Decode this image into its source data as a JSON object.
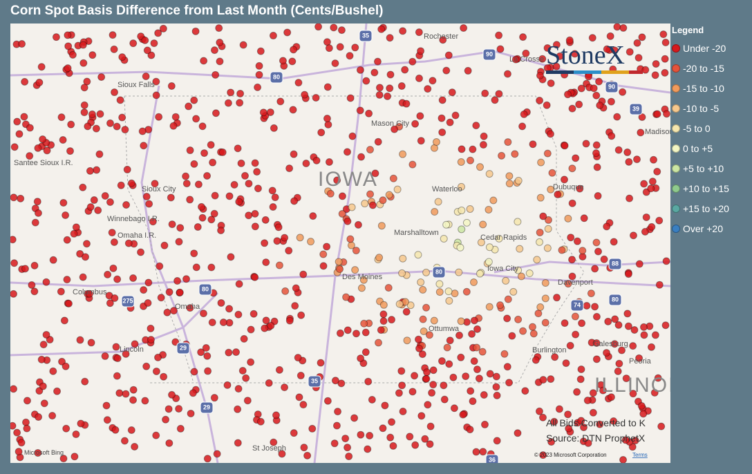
{
  "title": "Corn Spot Basis Difference from Last Month (Cents/Bushel)",
  "legend": {
    "title": "Legend",
    "items": [
      {
        "label": "Under -20",
        "color": "#d7191c"
      },
      {
        "label": "-20 to -15",
        "color": "#e5533a"
      },
      {
        "label": "-15 to -10",
        "color": "#f09a5c"
      },
      {
        "label": "-10 to -5",
        "color": "#f6c88d"
      },
      {
        "label": "-5 to 0",
        "color": "#f5e6ae"
      },
      {
        "label": "0 to +5",
        "color": "#f3f6c4"
      },
      {
        "label": "+5 to +10",
        "color": "#cbe6a3"
      },
      {
        "label": "+10 to +15",
        "color": "#8fca8d"
      },
      {
        "label": "+15 to +20",
        "color": "#5aa8a2"
      },
      {
        "label": "Over +20",
        "color": "#3a7fc1"
      }
    ]
  },
  "logo": "StoneX",
  "places": [
    "Rochester",
    "La Crosse",
    "Sioux Falls",
    "Mason City",
    "IOWA",
    "Waterloo",
    "Dubuque",
    "Sioux City",
    "Santee Sioux I.R.",
    "Winnebago I.R.",
    "Omaha I.R.",
    "Marshalltown",
    "Cedar Rapids",
    "Iowa City",
    "Davenport",
    "Des Moines",
    "Columbus",
    "Omaha",
    "Lincoln",
    "Ottumwa",
    "Burlington",
    "Galesburg",
    "Peoria",
    "ILLINOIS",
    "St Joseph",
    "Madison"
  ],
  "highways": [
    "35",
    "90",
    "90",
    "39",
    "80",
    "80",
    "80",
    "80",
    "29",
    "29",
    "275",
    "88",
    "74",
    "35",
    "36"
  ],
  "notes": [
    "All Bids Converted to K",
    "Source: DTN ProphetX"
  ],
  "attribution": {
    "brand": "Microsoft Bing",
    "copyright": "© 2023 Microsoft Corporation",
    "terms": "Terms"
  }
}
